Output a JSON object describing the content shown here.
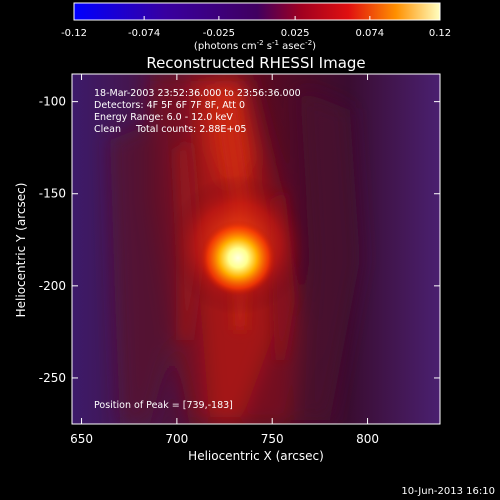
{
  "chart_data": {
    "type": "heatmap",
    "title": "Reconstructed RHESSI Image",
    "xlabel": "Heliocentric X (arcsec)",
    "ylabel": "Heliocentric Y (arcsec)",
    "xlim": [
      645,
      838
    ],
    "ylim": [
      -275,
      -85
    ],
    "x_ticks": [
      650,
      700,
      750,
      800
    ],
    "y_ticks": [
      -100,
      -150,
      -200,
      -250
    ],
    "colorbar": {
      "range": [
        -0.12,
        0.12
      ],
      "ticks": [
        "-0.12",
        "-0.074",
        "-0.025",
        "0.025",
        "0.074",
        "0.12"
      ],
      "label": "(photons cm",
      "label_sup1": "-2",
      "label_mid": " s",
      "label_sup2": "-1",
      "label_end": " asec",
      "label_sup3": "-2",
      "label_close": ")"
    },
    "peak": {
      "x": 739,
      "y": -183
    },
    "annotations": {
      "line1": "18-Mar-2003 23:52:36.000 to 23:56:36.000",
      "line2": "Detectors: 4F 5F 6F 7F 8F, Att 0",
      "line3": "Energy Range: 6.0 - 12.0 keV",
      "line4": "Clean     Total counts: 2.88E+05",
      "peak_label": "Position of Peak = [739,-183]"
    },
    "timestamp": "10-Jun-2013 16:10"
  }
}
